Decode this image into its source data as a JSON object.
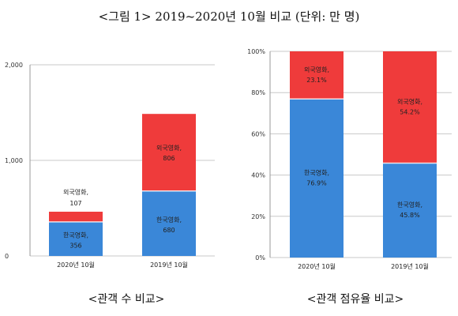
{
  "page": {
    "title": "<그림 1> 2019~2020년 10월 비교 (단위: 만 명)"
  },
  "colors": {
    "korean": "#3a87d8",
    "foreign": "#ef3b3b"
  },
  "chart_data": [
    {
      "type": "bar",
      "stacked": true,
      "caption": "<관객 수 비교>",
      "categories": [
        "2020년 10월",
        "2019년 10월"
      ],
      "series": [
        {
          "name": "한국영화",
          "values": [
            356,
            680
          ]
        },
        {
          "name": "외국영화",
          "values": [
            107,
            806
          ]
        }
      ],
      "ylim": [
        0,
        2000
      ],
      "yticks": [
        "0",
        "1,000",
        "2,000"
      ],
      "grid": true
    },
    {
      "type": "bar",
      "stacked": true,
      "percent": true,
      "caption": "<관객 점유율 비교>",
      "categories": [
        "2020년 10월",
        "2019년 10월"
      ],
      "series": [
        {
          "name": "한국영화",
          "values": [
            76.9,
            45.8
          ],
          "labels": [
            "76.9%",
            "45.8%"
          ]
        },
        {
          "name": "외국영화",
          "values": [
            23.1,
            54.2
          ],
          "labels": [
            "23.1%",
            "54.2%"
          ]
        }
      ],
      "ylim": [
        0,
        100
      ],
      "yticks": [
        "0%",
        "20%",
        "40%",
        "60%",
        "80%",
        "100%"
      ],
      "grid": true
    }
  ]
}
